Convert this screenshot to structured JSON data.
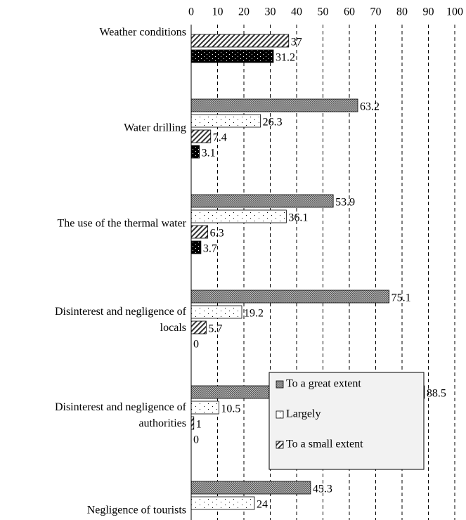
{
  "chart_data": {
    "type": "hbar",
    "categories": [
      "Weather conditions",
      "Water drilling",
      "The use of the thermal water",
      "Disinterest and negligence of locals",
      "Disinterest and negligence of authorities",
      "Negligence of tourists"
    ],
    "series": [
      {
        "name": "To a great extent",
        "color": "#555555",
        "pattern": "crosshatch",
        "values": [
          null,
          63.2,
          53.9,
          75.1,
          88.5,
          45.3
        ]
      },
      {
        "name": "Largely",
        "color": "#ffffff",
        "pattern": "dots",
        "values": [
          null,
          26.3,
          36.1,
          19.2,
          10.5,
          24
        ]
      },
      {
        "name": "To a small extent",
        "color": "#ffffff",
        "pattern": "diagonal",
        "values": [
          37,
          7.4,
          6.3,
          5.7,
          1,
          null
        ]
      },
      {
        "color": "#000000",
        "pattern": "dots-inverse",
        "values": [
          31.2,
          3.1,
          3.7,
          0,
          0,
          null
        ]
      }
    ],
    "xlim": [
      0,
      100
    ],
    "xticks": [
      0,
      10,
      20,
      30,
      40,
      50,
      60,
      70,
      80,
      90,
      100
    ],
    "grid": true,
    "legend": "lower right"
  }
}
